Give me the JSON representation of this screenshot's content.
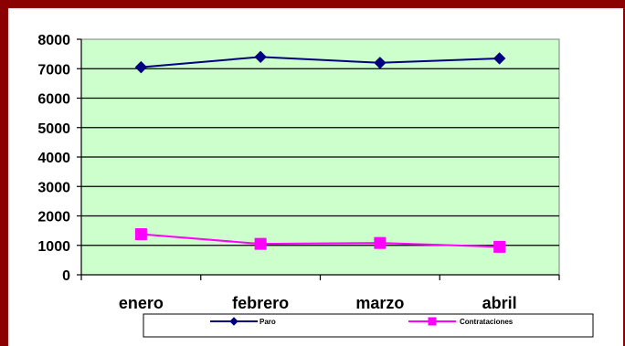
{
  "chart_data": {
    "type": "line",
    "categories": [
      "enero",
      "febrero",
      "marzo",
      "abril"
    ],
    "ylim": [
      0,
      8000
    ],
    "yticks": [
      0,
      1000,
      2000,
      3000,
      4000,
      5000,
      6000,
      7000,
      8000
    ],
    "grid": true,
    "legend_position": "bottom",
    "plot_background": "#ccffcc",
    "series": [
      {
        "name": "Paro",
        "values": [
          7050,
          7400,
          7200,
          7350
        ],
        "color": "#000080",
        "marker": "diamond"
      },
      {
        "name": "Contrataciones",
        "values": [
          1380,
          1050,
          1080,
          950
        ],
        "color": "#ff00ff",
        "marker": "square"
      }
    ]
  }
}
